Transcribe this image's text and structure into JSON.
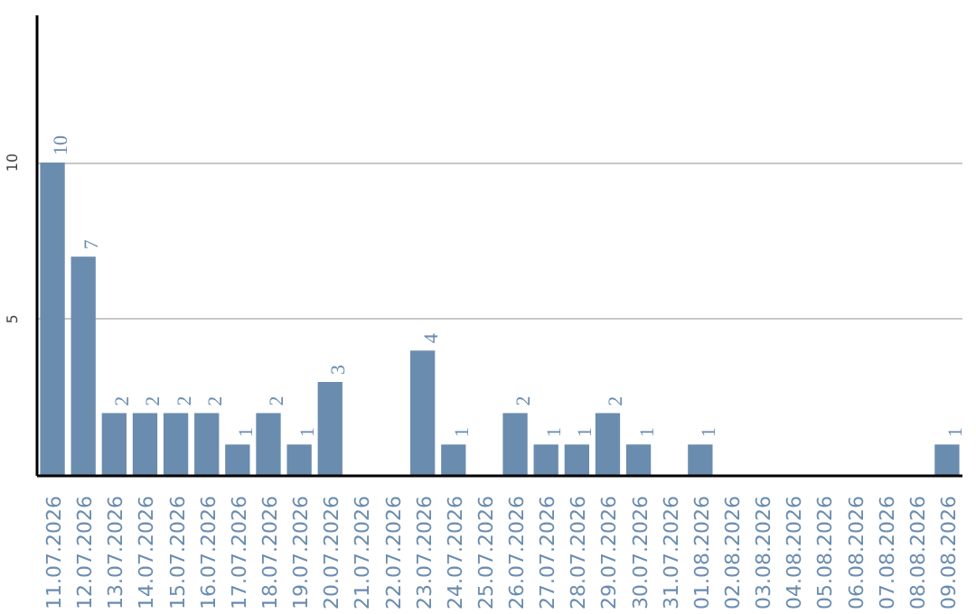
{
  "chart_data": {
    "type": "bar",
    "categories": [
      "11.07.2026",
      "12.07.2026",
      "13.07.2026",
      "14.07.2026",
      "15.07.2026",
      "16.07.2026",
      "17.07.2026",
      "18.07.2026",
      "19.07.2026",
      "20.07.2026",
      "21.07.2026",
      "22.07.2026",
      "23.07.2026",
      "24.07.2026",
      "25.07.2026",
      "26.07.2026",
      "27.07.2026",
      "28.07.2026",
      "29.07.2026",
      "30.07.2026",
      "31.07.2026",
      "01.08.2026",
      "02.08.2026",
      "03.08.2026",
      "04.08.2026",
      "05.08.2026",
      "06.08.2026",
      "07.08.2026",
      "08.08.2026",
      "09.08.2026"
    ],
    "values": [
      10,
      7,
      2,
      2,
      2,
      2,
      1,
      2,
      1,
      3,
      0,
      0,
      4,
      1,
      0,
      2,
      1,
      1,
      2,
      1,
      0,
      1,
      0,
      0,
      0,
      0,
      0,
      0,
      0,
      1
    ],
    "value_labels": [
      "10",
      "7",
      "2",
      "2",
      "2",
      "2",
      "1",
      "2",
      "1",
      "3",
      null,
      null,
      "4",
      "1",
      null,
      "2",
      "1",
      "1",
      "2",
      "1",
      null,
      "1",
      null,
      null,
      null,
      null,
      null,
      null,
      null,
      "1"
    ],
    "color": "#6a8caf",
    "ylim": [
      0,
      14.7
    ],
    "yticks": [
      5,
      10
    ],
    "grid": "y"
  }
}
